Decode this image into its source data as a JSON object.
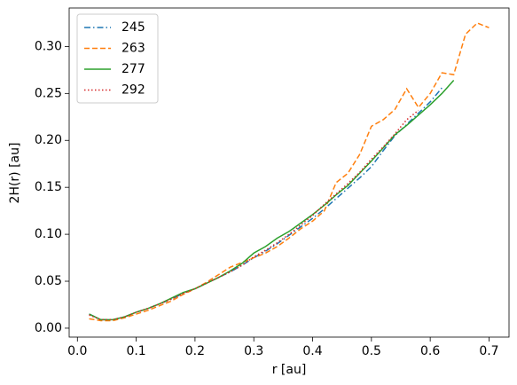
{
  "chart_data": {
    "type": "line",
    "xlabel": "r [au]",
    "ylabel": "2H(r) [au]",
    "x": [
      0.02,
      0.04,
      0.06,
      0.08,
      0.1,
      0.12,
      0.14,
      0.16,
      0.18,
      0.2,
      0.22,
      0.24,
      0.26,
      0.28,
      0.3,
      0.32,
      0.34,
      0.36,
      0.38,
      0.4,
      0.42,
      0.44,
      0.46,
      0.48,
      0.5,
      0.52,
      0.54,
      0.56,
      0.58,
      0.6,
      0.62,
      0.64,
      0.66,
      0.68,
      0.7
    ],
    "series": [
      {
        "name": "245",
        "color": "#1f77b4",
        "dash": "dashdot",
        "values": [
          0.015,
          0.009,
          0.009,
          0.012,
          0.017,
          0.021,
          0.026,
          0.031,
          0.037,
          0.042,
          0.048,
          0.054,
          0.06,
          0.067,
          0.075,
          0.082,
          0.09,
          0.099,
          0.108,
          0.117,
          0.127,
          0.138,
          0.149,
          0.16,
          0.172,
          0.189,
          0.205,
          0.217,
          0.229,
          0.241,
          0.256,
          null,
          null,
          null,
          null
        ]
      },
      {
        "name": "263",
        "color": "#ff7f0e",
        "dash": "dashed",
        "values": [
          0.01,
          0.008,
          0.008,
          0.011,
          0.015,
          0.019,
          0.024,
          0.029,
          0.036,
          0.042,
          0.049,
          0.057,
          0.065,
          0.07,
          0.075,
          0.08,
          0.087,
          0.096,
          0.106,
          0.114,
          0.125,
          0.155,
          0.165,
          0.185,
          0.215,
          0.222,
          0.233,
          0.255,
          0.235,
          0.25,
          0.272,
          0.27,
          0.313,
          0.325,
          0.32
        ]
      },
      {
        "name": "277",
        "color": "#2ca02c",
        "dash": "solid",
        "values": [
          0.015,
          0.009,
          0.009,
          0.012,
          0.017,
          0.021,
          0.026,
          0.032,
          0.038,
          0.042,
          0.048,
          0.054,
          0.061,
          0.069,
          0.08,
          0.087,
          0.096,
          0.103,
          0.112,
          0.121,
          0.131,
          0.142,
          0.152,
          0.165,
          0.178,
          0.192,
          0.206,
          0.216,
          0.227,
          0.238,
          0.25,
          0.264,
          null,
          null,
          null
        ]
      },
      {
        "name": "292",
        "color": "#d62728",
        "dash": "dotted",
        "values": [
          0.014,
          0.009,
          0.009,
          0.012,
          0.017,
          0.021,
          0.026,
          0.031,
          0.037,
          0.042,
          0.048,
          0.054,
          0.06,
          0.067,
          0.076,
          0.083,
          0.091,
          0.1,
          0.11,
          0.12,
          0.132,
          0.143,
          0.154,
          0.166,
          0.18,
          0.193,
          0.207,
          0.222,
          0.232,
          null,
          null,
          null,
          null,
          null,
          null
        ]
      }
    ],
    "xlim": [
      -0.014,
      0.734
    ],
    "ylim": [
      -0.0095,
      0.341
    ],
    "xticks": [
      {
        "value": 0.0,
        "label": "0.0"
      },
      {
        "value": 0.1,
        "label": "0.1"
      },
      {
        "value": 0.2,
        "label": "0.2"
      },
      {
        "value": 0.3,
        "label": "0.3"
      },
      {
        "value": 0.4,
        "label": "0.4"
      },
      {
        "value": 0.5,
        "label": "0.5"
      },
      {
        "value": 0.6,
        "label": "0.6"
      },
      {
        "value": 0.7,
        "label": "0.7"
      }
    ],
    "yticks": [
      {
        "value": 0.0,
        "label": "0.00"
      },
      {
        "value": 0.05,
        "label": "0.05"
      },
      {
        "value": 0.1,
        "label": "0.10"
      },
      {
        "value": 0.15,
        "label": "0.15"
      },
      {
        "value": 0.2,
        "label": "0.20"
      },
      {
        "value": 0.25,
        "label": "0.25"
      },
      {
        "value": 0.3,
        "label": "0.30"
      }
    ],
    "legend": "upper left"
  }
}
